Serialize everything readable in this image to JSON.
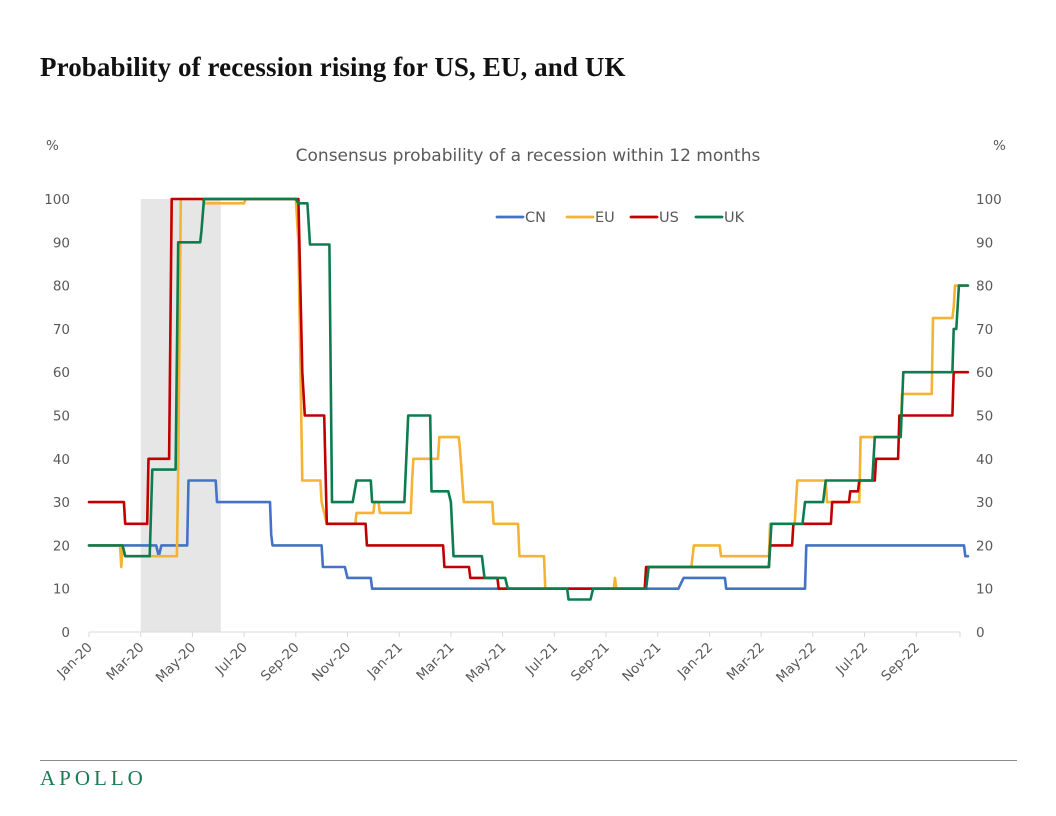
{
  "page": {
    "title": "Probability of recession rising for US, EU, and UK",
    "logo": "APOLLO"
  },
  "chart_data": {
    "type": "line",
    "title": "Consensus probability of a recession within 12 months",
    "ylabel_left": "%",
    "ylabel_right": "%",
    "ylim": [
      0,
      100
    ],
    "yticks": [
      0,
      10,
      20,
      30,
      40,
      50,
      60,
      70,
      80,
      90,
      100
    ],
    "x_unit": "months since Jan-2020",
    "xlim": [
      0,
      35.3
    ],
    "xticks": [
      {
        "label": "Jan-20",
        "x": 0
      },
      {
        "label": "Mar-20",
        "x": 2
      },
      {
        "label": "May-20",
        "x": 4
      },
      {
        "label": "Jul-20",
        "x": 6
      },
      {
        "label": "Sep-20",
        "x": 8
      },
      {
        "label": "Nov-20",
        "x": 10
      },
      {
        "label": "Jan-21",
        "x": 12
      },
      {
        "label": "Mar-21",
        "x": 14
      },
      {
        "label": "May-21",
        "x": 16
      },
      {
        "label": "Jul-21",
        "x": 18
      },
      {
        "label": "Sep-21",
        "x": 20
      },
      {
        "label": "Nov-21",
        "x": 22
      },
      {
        "label": "Jan-22",
        "x": 24
      },
      {
        "label": "Mar-22",
        "x": 26
      },
      {
        "label": "May-22",
        "x": 28
      },
      {
        "label": "Jul-22",
        "x": 30
      },
      {
        "label": "Sep-22",
        "x": 32
      }
    ],
    "grid": false,
    "legend_position": "top-center",
    "recession_shading": {
      "x_start": 2.0,
      "x_end": 5.1,
      "color": "#e6e6e6"
    },
    "series": [
      {
        "name": "CN",
        "color": "#4472c4",
        "points": [
          [
            0,
            20
          ],
          [
            2.6,
            20
          ],
          [
            2.7,
            17.5
          ],
          [
            2.8,
            20
          ],
          [
            3.8,
            20
          ],
          [
            3.85,
            35
          ],
          [
            4.9,
            35
          ],
          [
            4.95,
            30
          ],
          [
            7.0,
            30
          ],
          [
            7.05,
            22.5
          ],
          [
            7.1,
            20
          ],
          [
            9.0,
            20
          ],
          [
            9.05,
            15
          ],
          [
            9.9,
            15
          ],
          [
            10.0,
            12.5
          ],
          [
            10.9,
            12.5
          ],
          [
            10.95,
            10
          ],
          [
            22.8,
            10
          ],
          [
            23.0,
            12.5
          ],
          [
            24.6,
            12.5
          ],
          [
            24.65,
            10
          ],
          [
            27.7,
            10
          ],
          [
            27.75,
            20
          ],
          [
            33.85,
            20
          ],
          [
            33.9,
            17.5
          ],
          [
            34.0,
            17.5
          ]
        ]
      },
      {
        "name": "EU",
        "color": "#f5b335",
        "points": [
          [
            0,
            20
          ],
          [
            1.2,
            20
          ],
          [
            1.25,
            15
          ],
          [
            1.3,
            20
          ],
          [
            1.4,
            17.5
          ],
          [
            3.4,
            17.5
          ],
          [
            3.45,
            37.5
          ],
          [
            3.55,
            100
          ],
          [
            4.4,
            100
          ],
          [
            4.45,
            99
          ],
          [
            6.0,
            99
          ],
          [
            6.05,
            100
          ],
          [
            8.0,
            100
          ],
          [
            8.1,
            90
          ],
          [
            8.25,
            35
          ],
          [
            8.95,
            35
          ],
          [
            9.0,
            30
          ],
          [
            9.2,
            25
          ],
          [
            10.3,
            25
          ],
          [
            10.35,
            27.5
          ],
          [
            11.0,
            27.5
          ],
          [
            11.05,
            30
          ],
          [
            11.2,
            30
          ],
          [
            11.25,
            27.5
          ],
          [
            12.45,
            27.5
          ],
          [
            12.5,
            35
          ],
          [
            12.55,
            40
          ],
          [
            13.5,
            40
          ],
          [
            13.55,
            45
          ],
          [
            14.3,
            45
          ],
          [
            14.35,
            42.5
          ],
          [
            14.5,
            30
          ],
          [
            15.6,
            30
          ],
          [
            15.65,
            25
          ],
          [
            16.6,
            25
          ],
          [
            16.65,
            17.5
          ],
          [
            17.6,
            17.5
          ],
          [
            17.65,
            10
          ],
          [
            20.3,
            10
          ],
          [
            20.35,
            12.5
          ],
          [
            20.4,
            10
          ],
          [
            21.5,
            10
          ],
          [
            21.55,
            15
          ],
          [
            23.3,
            15
          ],
          [
            23.4,
            20
          ],
          [
            24.4,
            20
          ],
          [
            24.45,
            17.5
          ],
          [
            26.3,
            17.5
          ],
          [
            26.35,
            25
          ],
          [
            27.3,
            25
          ],
          [
            27.4,
            35
          ],
          [
            28.5,
            35
          ],
          [
            28.55,
            30
          ],
          [
            29.8,
            30
          ],
          [
            29.85,
            45
          ],
          [
            31.4,
            45
          ],
          [
            31.45,
            55
          ],
          [
            32.6,
            55
          ],
          [
            32.65,
            72.5
          ],
          [
            33.4,
            72.5
          ],
          [
            33.45,
            75
          ],
          [
            33.5,
            80
          ],
          [
            33.6,
            80
          ],
          [
            34.0,
            80
          ]
        ]
      },
      {
        "name": "US",
        "color": "#c00000",
        "points": [
          [
            0,
            30
          ],
          [
            1.35,
            30
          ],
          [
            1.4,
            25
          ],
          [
            2.25,
            25
          ],
          [
            2.3,
            40
          ],
          [
            3.1,
            40
          ],
          [
            3.2,
            100
          ],
          [
            8.1,
            100
          ],
          [
            8.25,
            60
          ],
          [
            8.35,
            50
          ],
          [
            9.1,
            50
          ],
          [
            9.2,
            25
          ],
          [
            10.7,
            25
          ],
          [
            10.75,
            20
          ],
          [
            13.7,
            20
          ],
          [
            13.75,
            15
          ],
          [
            14.7,
            15
          ],
          [
            14.75,
            12.5
          ],
          [
            15.8,
            12.5
          ],
          [
            15.85,
            10
          ],
          [
            18.0,
            10
          ],
          [
            18.05,
            10
          ],
          [
            21.5,
            10
          ],
          [
            21.55,
            15
          ],
          [
            26.3,
            15
          ],
          [
            26.35,
            20
          ],
          [
            27.2,
            20
          ],
          [
            27.25,
            25
          ],
          [
            28.7,
            25
          ],
          [
            28.75,
            30
          ],
          [
            29.4,
            30
          ],
          [
            29.45,
            32.5
          ],
          [
            29.75,
            32.5
          ],
          [
            29.8,
            35
          ],
          [
            30.4,
            35
          ],
          [
            30.45,
            40
          ],
          [
            31.3,
            40
          ],
          [
            31.35,
            50
          ],
          [
            33.4,
            50
          ],
          [
            33.45,
            60
          ],
          [
            34.0,
            60
          ]
        ]
      },
      {
        "name": "UK",
        "color": "#0d7d50",
        "points": [
          [
            0,
            20
          ],
          [
            1.3,
            20
          ],
          [
            1.4,
            17.5
          ],
          [
            2.35,
            17.5
          ],
          [
            2.45,
            37.5
          ],
          [
            3.35,
            37.5
          ],
          [
            3.45,
            90
          ],
          [
            4.3,
            90
          ],
          [
            4.35,
            92.5
          ],
          [
            4.45,
            100
          ],
          [
            8.0,
            100
          ],
          [
            8.1,
            99
          ],
          [
            8.45,
            99
          ],
          [
            8.55,
            89.5
          ],
          [
            9.3,
            89.5
          ],
          [
            9.4,
            30
          ],
          [
            10.2,
            30
          ],
          [
            10.35,
            35
          ],
          [
            10.9,
            35
          ],
          [
            10.95,
            30
          ],
          [
            12.2,
            30
          ],
          [
            12.35,
            50
          ],
          [
            13.2,
            50
          ],
          [
            13.25,
            32.5
          ],
          [
            13.9,
            32.5
          ],
          [
            14.0,
            30
          ],
          [
            14.1,
            17.5
          ],
          [
            15.2,
            17.5
          ],
          [
            15.3,
            12.5
          ],
          [
            16.1,
            12.5
          ],
          [
            16.2,
            10
          ],
          [
            18.5,
            10
          ],
          [
            18.55,
            7.5
          ],
          [
            19.4,
            7.5
          ],
          [
            19.5,
            10
          ],
          [
            21.55,
            10
          ],
          [
            21.65,
            15
          ],
          [
            26.3,
            15
          ],
          [
            26.4,
            25
          ],
          [
            27.6,
            25
          ],
          [
            27.7,
            30
          ],
          [
            28.4,
            30
          ],
          [
            28.5,
            35
          ],
          [
            30.3,
            35
          ],
          [
            30.4,
            45
          ],
          [
            31.4,
            45
          ],
          [
            31.5,
            60
          ],
          [
            33.4,
            60
          ],
          [
            33.45,
            70
          ],
          [
            33.55,
            70
          ],
          [
            33.65,
            80
          ],
          [
            34.0,
            80
          ]
        ]
      }
    ]
  }
}
